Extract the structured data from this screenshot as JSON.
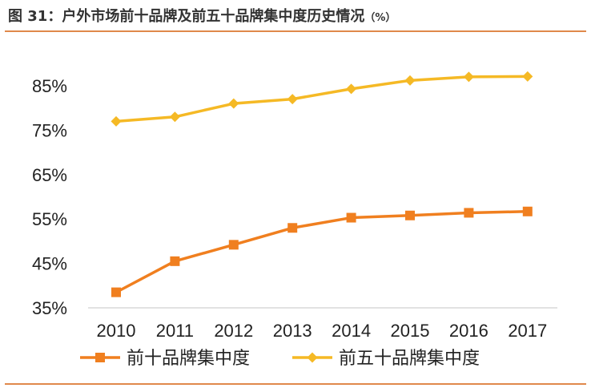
{
  "header": {
    "figure_label": "图 31：",
    "title": "户外市场前十品牌及前五十品牌集中度历史情况",
    "unit": "（%）"
  },
  "colors": {
    "top10": "#F07F1F",
    "top50": "#F5B925",
    "rule": "#E0894B",
    "axis": "#D9D9D9"
  },
  "chart_data": {
    "type": "line",
    "categories": [
      "2010",
      "2011",
      "2012",
      "2013",
      "2014",
      "2015",
      "2016",
      "2017"
    ],
    "yticks": [
      "35%",
      "45%",
      "55%",
      "65%",
      "75%",
      "85%"
    ],
    "ylim": [
      35,
      90
    ],
    "grid": false,
    "legend_position": "bottom",
    "series": [
      {
        "name": "前十品牌集中度",
        "marker": "square",
        "color": "#F07F1F",
        "values": [
          38.5,
          45.5,
          49.2,
          53.0,
          55.3,
          55.8,
          56.4,
          56.7
        ]
      },
      {
        "name": "前五十品牌集中度",
        "marker": "diamond",
        "color": "#F5B925",
        "values": [
          77.0,
          78.0,
          81.0,
          82.0,
          84.3,
          86.2,
          87.0,
          87.1
        ]
      }
    ]
  }
}
